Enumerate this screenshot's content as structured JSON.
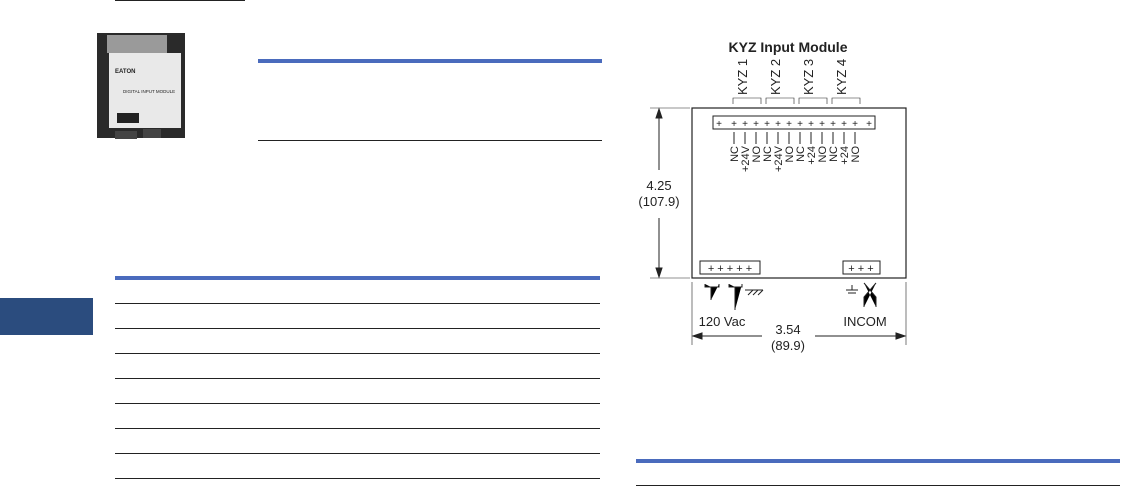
{
  "side_tab": {
    "color": "#2b4c7e"
  },
  "accent_color": "#4a6bbd",
  "product_photo": {
    "logo": "EATON",
    "label": "DIGITAL INPUT MODULE"
  },
  "diagram": {
    "title": "KYZ Input Module",
    "channels": [
      "KYZ 1",
      "KYZ 2",
      "KYZ 3",
      "KYZ 4"
    ],
    "terminals": [
      "NC",
      "+24V",
      "NO",
      "NC",
      "+24V",
      "NO",
      "NC",
      "+24",
      "NO",
      "NC",
      "+24",
      "NO"
    ],
    "height_in": "4.25",
    "height_mm": "(107.9)",
    "width_in": "3.54",
    "width_mm": "(89.9)",
    "power_label": "120 Vac",
    "comm_label": "INCOM"
  }
}
